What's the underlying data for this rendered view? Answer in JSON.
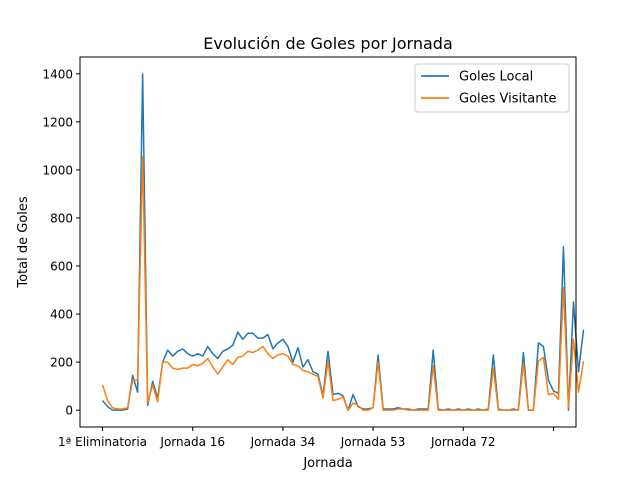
{
  "chart_data": {
    "type": "line",
    "title": "Evolución de Goles por Jornada",
    "xlabel": "Jornada",
    "ylabel": "Total de Goles",
    "ylim": [
      -70,
      1470
    ],
    "yticks": [
      0,
      200,
      400,
      600,
      800,
      1000,
      1200,
      1400
    ],
    "xticks": [
      {
        "label": "1ª Eliminatoria",
        "index": 0
      },
      {
        "label": "Jornada 16",
        "index": 18
      },
      {
        "label": "Jornada 34",
        "index": 36
      },
      {
        "label": "Jornada 53",
        "index": 54
      },
      {
        "label": "Jornada 72",
        "index": 72
      },
      {
        "label": "",
        "index": 90
      }
    ],
    "legend_position": "top-right",
    "grid": false,
    "series": [
      {
        "name": "Goles Local",
        "color": "#1f77b4",
        "values": [
          40,
          15,
          0,
          0,
          0,
          5,
          145,
          75,
          1400,
          20,
          120,
          50,
          200,
          250,
          225,
          245,
          255,
          235,
          225,
          235,
          225,
          265,
          235,
          215,
          245,
          255,
          270,
          325,
          295,
          320,
          320,
          300,
          300,
          315,
          255,
          280,
          295,
          265,
          200,
          260,
          180,
          210,
          160,
          150,
          60,
          245,
          65,
          70,
          60,
          0,
          65,
          15,
          5,
          5,
          10,
          230,
          5,
          5,
          5,
          10,
          5,
          5,
          0,
          5,
          5,
          5,
          250,
          5,
          0,
          5,
          0,
          5,
          0,
          5,
          0,
          5,
          0,
          5,
          230,
          5,
          0,
          0,
          5,
          0,
          240,
          0,
          0,
          280,
          265,
          125,
          80,
          70,
          680,
          0,
          450,
          160,
          335
        ]
      },
      {
        "name": "Goles Visitante",
        "color": "#ff7f0e",
        "values": [
          105,
          40,
          10,
          5,
          5,
          10,
          125,
          125,
          1055,
          30,
          105,
          35,
          200,
          200,
          175,
          170,
          175,
          175,
          190,
          185,
          195,
          215,
          180,
          150,
          180,
          210,
          190,
          220,
          225,
          245,
          240,
          250,
          265,
          235,
          215,
          230,
          235,
          225,
          190,
          185,
          165,
          160,
          150,
          140,
          50,
          205,
          40,
          45,
          55,
          0,
          30,
          20,
          0,
          0,
          10,
          200,
          0,
          0,
          0,
          5,
          5,
          0,
          0,
          0,
          0,
          0,
          185,
          0,
          0,
          0,
          0,
          0,
          0,
          0,
          0,
          0,
          0,
          0,
          175,
          0,
          0,
          0,
          0,
          0,
          195,
          0,
          0,
          205,
          220,
          65,
          70,
          45,
          510,
          10,
          295,
          75,
          205
        ]
      }
    ]
  }
}
